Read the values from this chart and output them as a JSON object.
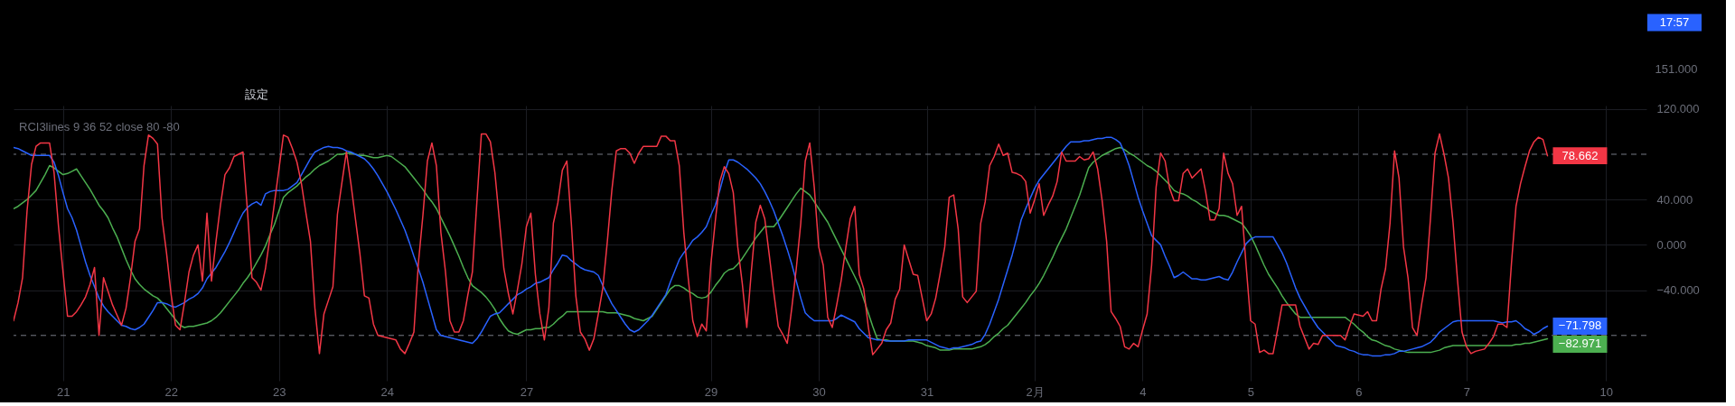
{
  "chart_data": {
    "type": "line",
    "title": "RCI3lines 9 36 52 close 80 -80",
    "annotations": [
      "設定",
      "17:57",
      "151.000"
    ],
    "categories": [
      null,
      null,
      null,
      null,
      null,
      null,
      null,
      null,
      null,
      null,
      null,
      "21",
      null,
      null,
      null,
      null,
      null,
      null,
      null,
      null,
      null,
      null,
      null,
      null,
      null,
      null,
      null,
      null,
      null,
      null,
      null,
      null,
      null,
      null,
      null,
      "22",
      null,
      null,
      null,
      null,
      null,
      null,
      null,
      null,
      null,
      null,
      null,
      null,
      null,
      null,
      null,
      null,
      null,
      null,
      null,
      null,
      null,
      null,
      null,
      "23",
      null,
      null,
      null,
      null,
      null,
      null,
      null,
      null,
      null,
      null,
      null,
      null,
      null,
      null,
      null,
      null,
      null,
      null,
      null,
      null,
      null,
      null,
      null,
      "24",
      null,
      null,
      null,
      null,
      null,
      null,
      null,
      null,
      null,
      null,
      null,
      null,
      null,
      null,
      null,
      null,
      null,
      null,
      null,
      null,
      null,
      null,
      null,
      null,
      null,
      null,
      null,
      null,
      null,
      null,
      "27",
      null,
      null,
      null,
      null,
      null,
      null,
      null,
      null,
      null,
      null,
      null,
      null,
      null,
      null,
      null,
      null,
      null,
      null,
      null,
      null,
      null,
      null,
      null,
      null,
      null,
      null,
      null,
      null,
      null,
      null,
      null,
      null,
      null,
      null,
      null,
      null,
      null,
      null,
      null,
      null,
      "29",
      null,
      null,
      null,
      null,
      null,
      null,
      null,
      null,
      null,
      null,
      null,
      null,
      null,
      null,
      null,
      null,
      null,
      null,
      null,
      null,
      null,
      null,
      null,
      "30",
      null,
      null,
      null,
      null,
      null,
      null,
      null,
      null,
      null,
      null,
      null,
      null,
      null,
      null,
      null,
      null,
      null,
      null,
      null,
      null,
      null,
      null,
      null,
      "31",
      null,
      null,
      null,
      null,
      null,
      null,
      null,
      null,
      null,
      null,
      null,
      null,
      null,
      null,
      null,
      null,
      null,
      null,
      null,
      null,
      null,
      null,
      null,
      "2月",
      null,
      null,
      null,
      null,
      null,
      null,
      null,
      null,
      null,
      null,
      null,
      null,
      null,
      null,
      null,
      null,
      null,
      null,
      null,
      null,
      null,
      null,
      null,
      "4",
      null,
      null,
      null,
      null,
      null,
      null,
      null,
      null,
      null,
      null,
      null,
      null,
      null,
      null,
      null,
      null,
      null,
      null,
      null,
      null,
      null,
      null,
      null,
      "5",
      null,
      null,
      null,
      null,
      null,
      null,
      null,
      null,
      null,
      null,
      null,
      null,
      null,
      null,
      null,
      null,
      null,
      null,
      null,
      null,
      null,
      null,
      null,
      "6",
      null,
      null,
      null,
      null,
      null,
      null,
      null,
      null,
      null,
      null,
      null,
      null,
      null,
      null,
      null,
      null,
      null,
      null,
      null,
      null,
      null,
      null,
      null,
      "7",
      null,
      null,
      null,
      null,
      null,
      null,
      null,
      null,
      null,
      null,
      null,
      null,
      null,
      null,
      null,
      null,
      null,
      null,
      null,
      null,
      null,
      null,
      null,
      null,
      null,
      null,
      null,
      null,
      null,
      null,
      "10",
      null,
      null,
      null,
      null,
      null,
      null,
      null,
      null,
      null
    ],
    "ylim": [
      -120,
      123
    ],
    "yticks": [
      {
        "value": 120,
        "label": "120.000"
      },
      {
        "value": 40,
        "label": "40.000"
      },
      {
        "value": 0,
        "label": "0.000"
      },
      {
        "value": -40,
        "label": "−40.000"
      }
    ],
    "grid": true,
    "line_style": "solid",
    "ref_lines": [
      {
        "axis": "y",
        "value": 80,
        "color": "#787b86",
        "line_style": "dashed"
      },
      {
        "axis": "y",
        "value": -80,
        "color": "#787b86",
        "line_style": "dashed"
      }
    ],
    "series": [
      {
        "color": "#4caf50",
        "values": [
          32,
          34,
          37,
          40,
          44,
          48,
          55,
          62,
          70,
          68,
          65,
          62,
          63,
          65,
          67,
          61,
          55,
          49,
          42,
          35,
          30,
          24,
          15,
          7,
          -3,
          -13,
          -22,
          -30,
          -35,
          -39,
          -42,
          -45,
          -47,
          -51,
          -56,
          -61,
          -66,
          -71,
          -73,
          -72,
          -72,
          -71,
          -70,
          -69,
          -67,
          -64,
          -60,
          -55,
          -50,
          -45,
          -40,
          -34,
          -29,
          -23,
          -16,
          -9,
          -1,
          9,
          18,
          30,
          42,
          46,
          49,
          52,
          56,
          60,
          63,
          67,
          70,
          72,
          74,
          77,
          80,
          80,
          81,
          81,
          80,
          79,
          79,
          78,
          77,
          77,
          78,
          79,
          78,
          75,
          72,
          69,
          64,
          59,
          54,
          49,
          43,
          38,
          32,
          24,
          16,
          8,
          -1,
          -10,
          -20,
          -29,
          -36,
          -39,
          -42,
          -46,
          -51,
          -57,
          -65,
          -71,
          -76,
          -78,
          -79,
          -77,
          -75,
          -75,
          -74,
          -74,
          -73,
          -73,
          -70,
          -66,
          -63,
          -59,
          -59,
          -59,
          -59,
          -59,
          -59,
          -59,
          -59,
          -59,
          -60,
          -60,
          -60,
          -61,
          -62,
          -63,
          -65,
          -66,
          -67,
          -65,
          -63,
          -57,
          -51,
          -45,
          -39,
          -36,
          -36,
          -38,
          -41,
          -43,
          -46,
          -47,
          -46,
          -42,
          -36,
          -31,
          -25,
          -22,
          -21,
          -17,
          -12,
          -6,
          0,
          6,
          11,
          16,
          16,
          16,
          21,
          27,
          33,
          39,
          45,
          50,
          47,
          44,
          38,
          32,
          26,
          20,
          12,
          4,
          -4,
          -12,
          -20,
          -28,
          -36,
          -48,
          -60,
          -72,
          -83,
          -84,
          -84,
          -85,
          -85,
          -85,
          -85,
          -85,
          -85,
          -86,
          -87,
          -89,
          -90,
          -91,
          -93,
          -93,
          -93,
          -92,
          -92,
          -92,
          -92,
          -92,
          -91,
          -90,
          -88,
          -85,
          -81,
          -78,
          -74,
          -71,
          -66,
          -61,
          -56,
          -51,
          -45,
          -40,
          -34,
          -27,
          -19,
          -11,
          -2,
          6,
          14,
          24,
          34,
          44,
          56,
          68,
          73,
          76,
          79,
          81,
          83,
          85,
          86,
          84,
          81,
          79,
          76,
          73,
          70,
          68,
          65,
          61,
          57,
          53,
          48,
          46,
          45,
          43,
          40,
          38,
          35,
          33,
          30,
          28,
          26,
          26,
          25,
          23,
          21,
          19,
          14,
          8,
          0,
          -9,
          -18,
          -26,
          -32,
          -38,
          -45,
          -51,
          -56,
          -61,
          -64,
          -64,
          -64,
          -64,
          -64,
          -64,
          -64,
          -64,
          -64,
          -64,
          -64,
          -67,
          -70,
          -74,
          -77,
          -81,
          -84,
          -85,
          -87,
          -89,
          -90,
          -92,
          -93,
          -94,
          -95,
          -95,
          -95,
          -95,
          -95,
          -95,
          -94,
          -93,
          -91,
          -90,
          -89,
          -89,
          -89,
          -89,
          -89,
          -89,
          -89,
          -89,
          -89,
          -89,
          -89,
          -89,
          -89,
          -89,
          -88,
          -88,
          -87,
          -87,
          -86,
          -85,
          -84,
          -82.971,
          null,
          null,
          null,
          null,
          null,
          null,
          null,
          null,
          null,
          null,
          null,
          null,
          null,
          null,
          null,
          null,
          null,
          null,
          null,
          null,
          null,
          null
        ],
        "value_labels": [
          null,
          null,
          null,
          null,
          null,
          null,
          null,
          null,
          null,
          null,
          null,
          null,
          null,
          null,
          null,
          null,
          null,
          null,
          null,
          null,
          null,
          null,
          null,
          null,
          null,
          null,
          null,
          null,
          null,
          null,
          null,
          null,
          null,
          null,
          null,
          null,
          null,
          null,
          null,
          null,
          null,
          null,
          null,
          null,
          null,
          null,
          null,
          null,
          null,
          null,
          null,
          null,
          null,
          null,
          null,
          null,
          null,
          null,
          null,
          null,
          null,
          null,
          null,
          null,
          null,
          null,
          null,
          null,
          null,
          null,
          null,
          null,
          null,
          null,
          null,
          null,
          null,
          null,
          null,
          null,
          null,
          null,
          null,
          null,
          null,
          null,
          null,
          null,
          null,
          null,
          null,
          null,
          null,
          null,
          null,
          null,
          null,
          null,
          null,
          null,
          null,
          null,
          null,
          null,
          null,
          null,
          null,
          null,
          null,
          null,
          null,
          null,
          null,
          null,
          null,
          null,
          null,
          null,
          null,
          null,
          null,
          null,
          null,
          null,
          null,
          null,
          null,
          null,
          null,
          null,
          null,
          null,
          null,
          null,
          null,
          null,
          null,
          null,
          null,
          null,
          null,
          null,
          null,
          null,
          null,
          null,
          null,
          null,
          null,
          null,
          null,
          null,
          null,
          null,
          null,
          null,
          null,
          null,
          null,
          null,
          null,
          null,
          null,
          null,
          null,
          null,
          null,
          null,
          null,
          null,
          null,
          null,
          null,
          null,
          null,
          null,
          null,
          null,
          null,
          null,
          null,
          null,
          null,
          null,
          null,
          null,
          null,
          null,
          null,
          null,
          null,
          null,
          null,
          null,
          null,
          null,
          null,
          null,
          null,
          null,
          null,
          null,
          null,
          null,
          null,
          null,
          null,
          null,
          null,
          null,
          null,
          null,
          null,
          null,
          null,
          null,
          null,
          null,
          null,
          null,
          null,
          null,
          null,
          null,
          null,
          null,
          null,
          null,
          null,
          null,
          null,
          null,
          null,
          null,
          null,
          null,
          null,
          null,
          null,
          null,
          null,
          null,
          null,
          null,
          null,
          null,
          null,
          null,
          null,
          null,
          null,
          null,
          null,
          null,
          null,
          null,
          null,
          null,
          null,
          null,
          null,
          null,
          null,
          null,
          null,
          null,
          null,
          null,
          null,
          null,
          null,
          null,
          null,
          null,
          null,
          null,
          null,
          null,
          null,
          null,
          null,
          null,
          null,
          null,
          null,
          null,
          null,
          null,
          null,
          null,
          null,
          null,
          null,
          null,
          null,
          null,
          null,
          null,
          null,
          null,
          null,
          null,
          null,
          null,
          null,
          null,
          null,
          null,
          null,
          null,
          null,
          null,
          null,
          null,
          null,
          null,
          null,
          null,
          null,
          null,
          null,
          null,
          null,
          null,
          null,
          null,
          null,
          null,
          null,
          null,
          null,
          null,
          null,
          null,
          null,
          null,
          null,
          null,
          null,
          null,
          null,
          "−82.971",
          null,
          null,
          null,
          null,
          null,
          null,
          null,
          null,
          null,
          null,
          null,
          null,
          null,
          null,
          null,
          null,
          null,
          null,
          null,
          null,
          null,
          null
        ]
      },
      {
        "color": "#2962ff",
        "values": [
          86,
          85,
          83,
          81,
          79,
          79,
          79,
          79,
          79,
          73,
          61,
          46,
          32,
          24,
          13,
          -1,
          -15,
          -27,
          -37,
          -47,
          -54,
          -59,
          -63,
          -67,
          -71,
          -72,
          -74,
          -75,
          -73,
          -70,
          -64,
          -58,
          -51,
          -51,
          -52,
          -54,
          -55,
          -53,
          -51,
          -48,
          -46,
          -43,
          -38,
          -30,
          -25,
          -20,
          -13,
          -6,
          2,
          11,
          20,
          28,
          33,
          36,
          38,
          35,
          45,
          47,
          48,
          48,
          48,
          49,
          52,
          55,
          62,
          69,
          76,
          82,
          84,
          86,
          87,
          86,
          86,
          85,
          83,
          82,
          80,
          78,
          76,
          72,
          67,
          61,
          54,
          47,
          39,
          31,
          22,
          13,
          2,
          -10,
          -21,
          -33,
          -47,
          -61,
          -75,
          -80,
          -81,
          -82,
          -83,
          -84,
          -85,
          -86,
          -87,
          -83,
          -77,
          -70,
          -63,
          -61,
          -60,
          -56,
          -52,
          -48,
          -44,
          -42,
          -39,
          -37,
          -34,
          -33,
          -31,
          -29,
          -22,
          -16,
          -9,
          -10,
          -14,
          -17,
          -20,
          -22,
          -23,
          -24,
          -27,
          -36,
          -44,
          -52,
          -58,
          -64,
          -70,
          -75,
          -77,
          -75,
          -71,
          -67,
          -62,
          -56,
          -50,
          -44,
          -33,
          -23,
          -13,
          -7,
          -2,
          4,
          7,
          11,
          16,
          26,
          35,
          48,
          63,
          75,
          75,
          73,
          70,
          67,
          63,
          59,
          54,
          47,
          39,
          30,
          19,
          8,
          -4,
          -17,
          -32,
          -47,
          -60,
          -64,
          -67,
          -67,
          -67,
          -67,
          -67,
          -65,
          -62,
          -64,
          -66,
          -68,
          -74,
          -78,
          -82,
          -83,
          -84,
          -84,
          -85,
          -85,
          -85,
          -85,
          -85,
          -84,
          -84,
          -84,
          -84,
          -84,
          -86,
          -88,
          -90,
          -91,
          -92,
          -91,
          -91,
          -90,
          -89,
          -88,
          -86,
          -85,
          -79,
          -70,
          -59,
          -48,
          -35,
          -22,
          -9,
          6,
          22,
          32,
          41,
          50,
          57,
          62,
          67,
          72,
          77,
          82,
          87,
          91,
          91,
          91,
          92,
          92,
          93,
          94,
          94,
          95,
          95,
          93,
          90,
          81,
          70,
          56,
          42,
          30,
          19,
          8,
          4,
          0,
          -10,
          -19,
          -29,
          -27,
          -24,
          -27,
          -30,
          -30,
          -31,
          -31,
          -30,
          -29,
          -28,
          -30,
          -31,
          -24,
          -15,
          -7,
          1,
          5,
          7,
          7,
          7,
          7,
          7,
          0,
          -7,
          -16,
          -27,
          -38,
          -47,
          -54,
          -61,
          -67,
          -73,
          -77,
          -81,
          -85,
          -89,
          -90,
          -91,
          -93,
          -94,
          -96,
          -97,
          -97,
          -98,
          -98,
          -98,
          -97,
          -97,
          -96,
          -94,
          -94,
          -93,
          -92,
          -91,
          -90,
          -88,
          -86,
          -82,
          -77,
          -74,
          -71,
          -68,
          -67,
          -67,
          -67,
          -67,
          -67,
          -67,
          -67,
          -67,
          -67,
          -68,
          -69,
          -68,
          -68,
          -67,
          -70,
          -74,
          -76,
          -79,
          -77,
          -74,
          -71.798,
          null,
          null,
          null,
          null,
          null,
          null,
          null,
          null,
          null,
          null,
          null,
          null,
          null,
          null,
          null,
          null,
          null,
          null,
          null,
          null,
          null,
          null
        ],
        "value_labels": [
          null,
          null,
          null,
          null,
          null,
          null,
          null,
          null,
          null,
          null,
          null,
          null,
          null,
          null,
          null,
          null,
          null,
          null,
          null,
          null,
          null,
          null,
          null,
          null,
          null,
          null,
          null,
          null,
          null,
          null,
          null,
          null,
          null,
          null,
          null,
          null,
          null,
          null,
          null,
          null,
          null,
          null,
          null,
          null,
          null,
          null,
          null,
          null,
          null,
          null,
          null,
          null,
          null,
          null,
          null,
          null,
          null,
          null,
          null,
          null,
          null,
          null,
          null,
          null,
          null,
          null,
          null,
          null,
          null,
          null,
          null,
          null,
          null,
          null,
          null,
          null,
          null,
          null,
          null,
          null,
          null,
          null,
          null,
          null,
          null,
          null,
          null,
          null,
          null,
          null,
          null,
          null,
          null,
          null,
          null,
          null,
          null,
          null,
          null,
          null,
          null,
          null,
          null,
          null,
          null,
          null,
          null,
          null,
          null,
          null,
          null,
          null,
          null,
          null,
          null,
          null,
          null,
          null,
          null,
          null,
          null,
          null,
          null,
          null,
          null,
          null,
          null,
          null,
          null,
          null,
          null,
          null,
          null,
          null,
          null,
          null,
          null,
          null,
          null,
          null,
          null,
          null,
          null,
          null,
          null,
          null,
          null,
          null,
          null,
          null,
          null,
          null,
          null,
          null,
          null,
          null,
          null,
          null,
          null,
          null,
          null,
          null,
          null,
          null,
          null,
          null,
          null,
          null,
          null,
          null,
          null,
          null,
          null,
          null,
          null,
          null,
          null,
          null,
          null,
          null,
          null,
          null,
          null,
          null,
          null,
          null,
          null,
          null,
          null,
          null,
          null,
          null,
          null,
          null,
          null,
          null,
          null,
          null,
          null,
          null,
          null,
          null,
          null,
          null,
          null,
          null,
          null,
          null,
          null,
          null,
          null,
          null,
          null,
          null,
          null,
          null,
          null,
          null,
          null,
          null,
          null,
          null,
          null,
          null,
          null,
          null,
          null,
          null,
          null,
          null,
          null,
          null,
          null,
          null,
          null,
          null,
          null,
          null,
          null,
          null,
          null,
          null,
          null,
          null,
          null,
          null,
          null,
          null,
          null,
          null,
          null,
          null,
          null,
          null,
          null,
          null,
          null,
          null,
          null,
          null,
          null,
          null,
          null,
          null,
          null,
          null,
          null,
          null,
          null,
          null,
          null,
          null,
          null,
          null,
          null,
          null,
          null,
          null,
          null,
          null,
          null,
          null,
          null,
          null,
          null,
          null,
          null,
          null,
          null,
          null,
          null,
          null,
          null,
          null,
          null,
          null,
          null,
          null,
          null,
          null,
          null,
          null,
          null,
          null,
          null,
          null,
          null,
          null,
          null,
          null,
          null,
          null,
          null,
          null,
          null,
          null,
          null,
          null,
          null,
          null,
          null,
          null,
          null,
          null,
          null,
          null,
          null,
          null,
          null,
          null,
          null,
          null,
          null,
          null,
          null,
          null,
          null,
          null,
          null,
          null,
          null,
          "−71.798",
          null,
          null,
          null,
          null,
          null,
          null,
          null,
          null,
          null,
          null,
          null,
          null,
          null,
          null,
          null,
          null,
          null,
          null,
          null,
          null,
          null,
          null
        ]
      },
      {
        "color": "#f23645",
        "values": [
          -67,
          -51,
          -29,
          30,
          71,
          87,
          90,
          90,
          90,
          64,
          16,
          -24,
          -63,
          -63,
          -59,
          -53,
          -46,
          -35,
          -20,
          -80,
          -29,
          -41,
          -53,
          -62,
          -71,
          -56,
          -29,
          3,
          14,
          70,
          97,
          94,
          89,
          24,
          -7,
          -43,
          -71,
          -75,
          -51,
          -24,
          -9,
          0,
          -32,
          28,
          -32,
          3,
          35,
          62,
          68,
          78,
          80,
          82,
          30,
          -29,
          -33,
          -40,
          -21,
          7,
          37,
          67,
          97,
          95,
          85,
          73,
          54,
          28,
          3,
          -56,
          -96,
          -61,
          -49,
          -37,
          27,
          55,
          82,
          54,
          23,
          -8,
          -45,
          -47,
          -70,
          -80,
          -81,
          -82,
          -83,
          -84,
          -92,
          -96,
          -87,
          -77,
          -16,
          26,
          74,
          90,
          70,
          11,
          -23,
          -67,
          -77,
          -77,
          -67,
          -44,
          -24,
          38,
          98,
          98,
          91,
          64,
          22,
          -21,
          -43,
          -61,
          -40,
          -17,
          16,
          28,
          -26,
          -61,
          -84,
          -56,
          19,
          37,
          66,
          74,
          19,
          -45,
          -77,
          -83,
          -93,
          -83,
          -61,
          -38,
          3,
          48,
          83,
          85,
          85,
          81,
          72,
          81,
          87,
          87,
          87,
          87,
          96,
          96,
          92,
          92,
          70,
          11,
          -30,
          -67,
          -81,
          -70,
          -76,
          -18,
          21,
          56,
          69,
          63,
          46,
          -2,
          -34,
          -73,
          -24,
          20,
          35,
          23,
          -9,
          -42,
          -72,
          -79,
          -87,
          -56,
          -21,
          19,
          74,
          90,
          51,
          -2,
          -18,
          -64,
          -73,
          -53,
          -31,
          -3,
          23,
          34,
          -26,
          -39,
          -72,
          -97,
          -92,
          -87,
          -75,
          -69,
          -48,
          -39,
          0,
          -13,
          -26,
          -27,
          -47,
          -67,
          -61,
          -47,
          -25,
          -2,
          42,
          44,
          14,
          -46,
          -51,
          -46,
          -41,
          19,
          38,
          70,
          78,
          89,
          79,
          81,
          64,
          63,
          61,
          56,
          28,
          40,
          54,
          26,
          35,
          43,
          56,
          82,
          74,
          74,
          74,
          78,
          75,
          76,
          82,
          67,
          39,
          3,
          -59,
          -65,
          -72,
          -90,
          -92,
          -87,
          -90,
          -75,
          -61,
          -18,
          51,
          81,
          74,
          50,
          39,
          39,
          63,
          67,
          59,
          63,
          67,
          47,
          22,
          22,
          32,
          81,
          63,
          54,
          26,
          34,
          -18,
          -67,
          -70,
          -95,
          -93,
          -96,
          -96,
          -75,
          -53,
          -53,
          -53,
          -53,
          -72,
          -82,
          -92,
          -87,
          -88,
          -80,
          -80,
          -80,
          -80,
          -80,
          -84,
          -72,
          -61,
          -62,
          -63,
          -59,
          -67,
          -67,
          -39,
          -21,
          19,
          83,
          59,
          -2,
          -29,
          -73,
          -80,
          -53,
          -29,
          24,
          81,
          98,
          80,
          59,
          20,
          -31,
          -77,
          -90,
          -96,
          -94,
          -93,
          -92,
          -87,
          -81,
          -70,
          -70,
          -73,
          -16,
          34,
          54,
          69,
          83,
          91,
          95,
          93,
          78.662,
          null,
          null,
          null,
          null,
          null,
          null,
          null,
          null,
          null,
          null,
          null,
          null,
          null,
          null,
          null,
          null,
          null,
          null,
          null,
          null,
          null,
          null
        ],
        "value_labels": [
          null,
          null,
          null,
          null,
          null,
          null,
          null,
          null,
          null,
          null,
          null,
          null,
          null,
          null,
          null,
          null,
          null,
          null,
          null,
          null,
          null,
          null,
          null,
          null,
          null,
          null,
          null,
          null,
          null,
          null,
          null,
          null,
          null,
          null,
          null,
          null,
          null,
          null,
          null,
          null,
          null,
          null,
          null,
          null,
          null,
          null,
          null,
          null,
          null,
          null,
          null,
          null,
          null,
          null,
          null,
          null,
          null,
          null,
          null,
          null,
          null,
          null,
          null,
          null,
          null,
          null,
          null,
          null,
          null,
          null,
          null,
          null,
          null,
          null,
          null,
          null,
          null,
          null,
          null,
          null,
          null,
          null,
          null,
          null,
          null,
          null,
          null,
          null,
          null,
          null,
          null,
          null,
          null,
          null,
          null,
          null,
          null,
          null,
          null,
          null,
          null,
          null,
          null,
          null,
          null,
          null,
          null,
          null,
          null,
          null,
          null,
          null,
          null,
          null,
          null,
          null,
          null,
          null,
          null,
          null,
          null,
          null,
          null,
          null,
          null,
          null,
          null,
          null,
          null,
          null,
          null,
          null,
          null,
          null,
          null,
          null,
          null,
          null,
          null,
          null,
          null,
          null,
          null,
          null,
          null,
          null,
          null,
          null,
          null,
          null,
          null,
          null,
          null,
          null,
          null,
          null,
          null,
          null,
          null,
          null,
          null,
          null,
          null,
          null,
          null,
          null,
          null,
          null,
          null,
          null,
          null,
          null,
          null,
          null,
          null,
          null,
          null,
          null,
          null,
          null,
          null,
          null,
          null,
          null,
          null,
          null,
          null,
          null,
          null,
          null,
          null,
          null,
          null,
          null,
          null,
          null,
          null,
          null,
          null,
          null,
          null,
          null,
          null,
          null,
          null,
          null,
          null,
          null,
          null,
          null,
          null,
          null,
          null,
          null,
          null,
          null,
          null,
          null,
          null,
          null,
          null,
          null,
          null,
          null,
          null,
          null,
          null,
          null,
          null,
          null,
          null,
          null,
          null,
          null,
          null,
          null,
          null,
          null,
          null,
          null,
          null,
          null,
          null,
          null,
          null,
          null,
          null,
          null,
          null,
          null,
          null,
          null,
          null,
          null,
          null,
          null,
          null,
          null,
          null,
          null,
          null,
          null,
          null,
          null,
          null,
          null,
          null,
          null,
          null,
          null,
          null,
          null,
          null,
          null,
          null,
          null,
          null,
          null,
          null,
          null,
          null,
          null,
          null,
          null,
          null,
          null,
          null,
          null,
          null,
          null,
          null,
          null,
          null,
          null,
          null,
          null,
          null,
          null,
          null,
          null,
          null,
          null,
          null,
          null,
          null,
          null,
          null,
          null,
          null,
          null,
          null,
          null,
          null,
          null,
          null,
          null,
          null,
          null,
          null,
          null,
          null,
          null,
          null,
          null,
          null,
          null,
          null,
          null,
          null,
          null,
          null,
          null,
          null,
          null,
          null,
          null,
          null,
          null,
          null,
          null,
          null,
          "78.662",
          null,
          null,
          null,
          null,
          null,
          null,
          null,
          null,
          null,
          null,
          null,
          null,
          null,
          null,
          null,
          null,
          null,
          null,
          null,
          null,
          null,
          null
        ]
      }
    ]
  }
}
